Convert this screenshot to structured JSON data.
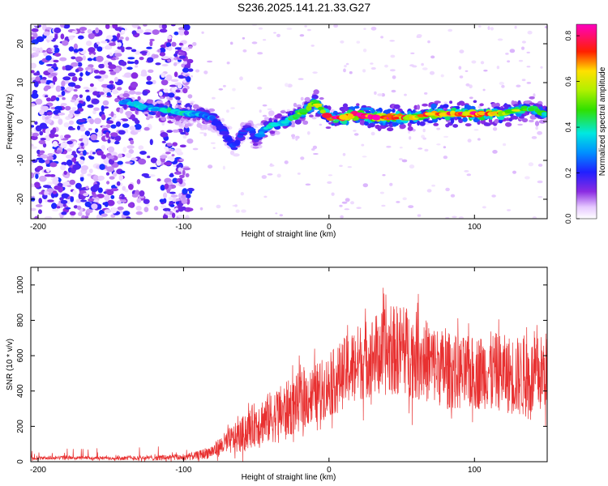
{
  "title": "S236.2025.141.21.33.G27",
  "chart_data": [
    {
      "type": "heatmap",
      "xlabel": "Height of straight line (km)",
      "ylabel": "Frequency (Hz)",
      "xlim": [
        -205,
        150
      ],
      "ylim": [
        -25,
        25
      ],
      "x_ticks": [
        -200,
        -100,
        0,
        100
      ],
      "y_ticks": [
        -20,
        -10,
        0,
        10,
        20
      ],
      "colorbar": {
        "label": "Normalized spectral amplitude",
        "range": [
          0,
          0.85
        ],
        "ticks": [
          0.0,
          0.2,
          0.4,
          0.6,
          0.8
        ],
        "colormap": "rainbow (white-violet-blue-cyan-green-yellow-red-magenta)"
      },
      "ridge": {
        "description_points_x": [
          -140,
          -130,
          -120,
          -110,
          -100,
          -90,
          -80,
          -75,
          -70,
          -65,
          -60,
          -55,
          -50,
          -45,
          -40,
          -30,
          -20,
          -15,
          -10,
          0,
          10,
          20,
          30,
          40,
          50,
          60,
          70,
          80,
          90,
          100,
          110,
          120,
          130,
          140,
          148
        ],
        "frequency_hz": [
          5,
          4,
          3,
          3,
          2,
          2,
          1,
          -1,
          -4,
          -7,
          -3,
          -1,
          -5,
          -2,
          -1,
          0,
          2,
          3,
          5,
          1,
          1,
          2,
          1,
          1,
          1,
          1,
          2,
          2,
          2,
          2,
          2,
          2,
          3,
          3,
          2
        ],
        "peak_amplitude": [
          0.3,
          0.35,
          0.35,
          0.4,
          0.35,
          0.3,
          0.25,
          0.2,
          0.2,
          0.2,
          0.2,
          0.2,
          0.2,
          0.3,
          0.35,
          0.4,
          0.45,
          0.5,
          0.5,
          0.7,
          0.75,
          0.8,
          0.75,
          0.75,
          0.7,
          0.6,
          0.7,
          0.65,
          0.7,
          0.75,
          0.7,
          0.6,
          0.5,
          0.45,
          0.4
        ]
      }
    },
    {
      "type": "line",
      "xlabel": "Height of straight line (km)",
      "ylabel": "SNR (10 * v/v)",
      "xlim": [
        -205,
        150
      ],
      "ylim": [
        0,
        1100
      ],
      "x_ticks": [
        -200,
        -100,
        0,
        100
      ],
      "y_ticks": [
        0,
        200,
        400,
        600,
        800,
        1000
      ],
      "color": "#e83030",
      "envelope": {
        "x": [
          -205,
          -180,
          -150,
          -120,
          -100,
          -90,
          -80,
          -70,
          -60,
          -50,
          -40,
          -30,
          -20,
          -10,
          0,
          10,
          20,
          30,
          40,
          50,
          60,
          70,
          80,
          90,
          100,
          110,
          120,
          130,
          140,
          150
        ],
        "mean": [
          20,
          22,
          20,
          22,
          25,
          35,
          60,
          110,
          150,
          220,
          250,
          290,
          340,
          380,
          430,
          500,
          560,
          600,
          620,
          640,
          600,
          560,
          520,
          500,
          500,
          520,
          500,
          480,
          470,
          520
        ],
        "spread": [
          10,
          10,
          10,
          15,
          18,
          25,
          40,
          70,
          100,
          130,
          150,
          160,
          170,
          170,
          180,
          200,
          220,
          230,
          250,
          260,
          250,
          230,
          220,
          210,
          210,
          220,
          220,
          230,
          230,
          220
        ]
      }
    }
  ]
}
